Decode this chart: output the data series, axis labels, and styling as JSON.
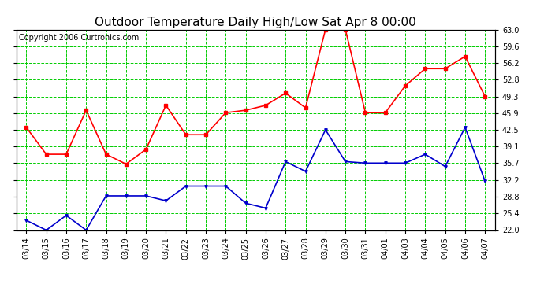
{
  "title": "Outdoor Temperature Daily High/Low Sat Apr 8 00:00",
  "copyright": "Copyright 2006 Curtronics.com",
  "x_labels": [
    "03/14",
    "03/15",
    "03/16",
    "03/17",
    "03/18",
    "03/19",
    "03/20",
    "03/21",
    "03/22",
    "03/23",
    "03/24",
    "03/25",
    "03/26",
    "03/27",
    "03/28",
    "03/29",
    "03/30",
    "03/31",
    "04/01",
    "04/03",
    "04/04",
    "04/05",
    "04/06",
    "04/07"
  ],
  "high_temps": [
    43.0,
    37.5,
    37.5,
    46.5,
    37.5,
    35.5,
    38.5,
    47.5,
    41.5,
    41.5,
    46.0,
    46.5,
    47.5,
    50.0,
    47.0,
    63.0,
    63.0,
    46.0,
    46.0,
    51.5,
    55.0,
    55.0,
    57.5,
    49.3
  ],
  "low_temps": [
    24.0,
    22.0,
    25.0,
    22.0,
    29.0,
    29.0,
    29.0,
    28.0,
    31.0,
    31.0,
    31.0,
    27.5,
    26.5,
    36.0,
    34.0,
    42.5,
    36.0,
    35.7,
    35.7,
    35.7,
    37.5,
    35.0,
    43.0,
    32.0
  ],
  "high_color": "#ff0000",
  "low_color": "#0000cc",
  "bg_color": "#ffffff",
  "grid_color": "#00cc00",
  "y_min": 22.0,
  "y_max": 63.0,
  "y_ticks": [
    22.0,
    25.4,
    28.8,
    32.2,
    35.7,
    39.1,
    42.5,
    45.9,
    49.3,
    52.8,
    56.2,
    59.6,
    63.0
  ],
  "title_fontsize": 11,
  "copyright_fontsize": 7,
  "tick_fontsize": 7,
  "marker_size": 2.5,
  "line_width": 1.2
}
